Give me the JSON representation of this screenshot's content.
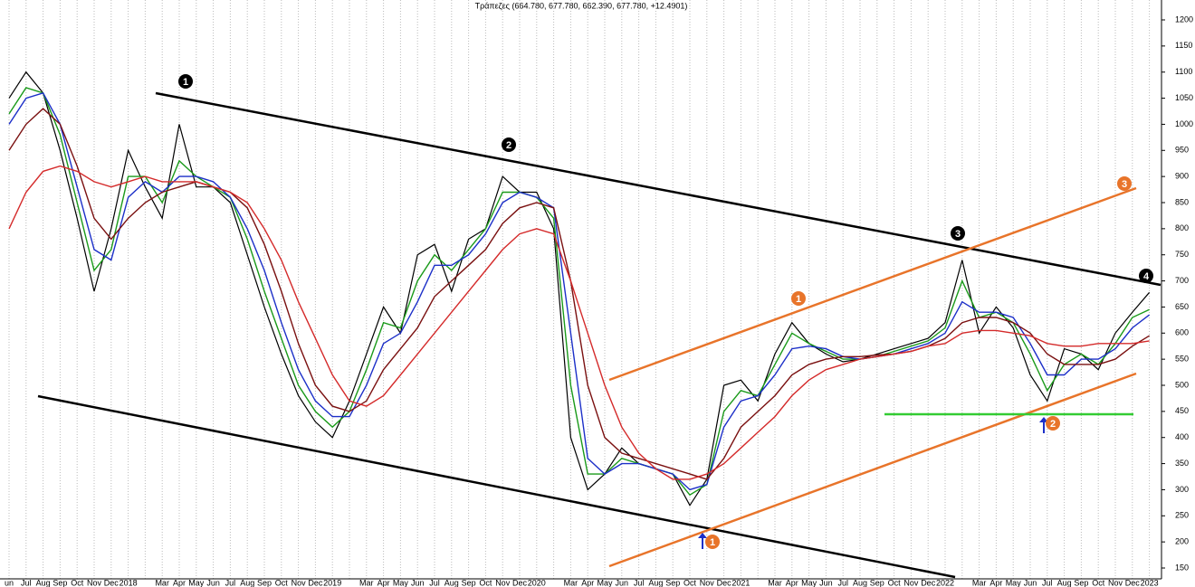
{
  "chart_data": {
    "type": "line",
    "title": "Τράπεζες (664.780, 677.780, 662.390, 677.780, +12.4901)",
    "categories": [
      "un",
      "Jul",
      "Aug",
      "Sep",
      "Oct",
      "Nov",
      "Dec",
      "2018",
      null,
      "Mar",
      "Apr",
      "May",
      "Jun",
      "Jul",
      "Aug",
      "Sep",
      "Oct",
      "Nov",
      "Dec",
      "2019",
      null,
      "Mar",
      "Apr",
      "May",
      "Jun",
      "Jul",
      "Aug",
      "Sep",
      "Oct",
      "Nov",
      "Dec",
      "2020",
      null,
      "Mar",
      "Apr",
      "May",
      "Jun",
      "Jul",
      "Aug",
      "Sep",
      "Oct",
      "Nov",
      "Dec",
      "2021",
      null,
      "Mar",
      "Apr",
      "May",
      "Jun",
      "Jul",
      "Aug",
      "Sep",
      "Oct",
      "Nov",
      "Dec",
      "2022",
      null,
      "Mar",
      "Apr",
      "May",
      "Jun",
      "Jul",
      "Aug",
      "Sep",
      "Oct",
      "Nov",
      "Dec",
      "2023"
    ],
    "series": [
      {
        "color": "#000000",
        "values": [
          1050,
          1100,
          1060,
          950,
          820,
          680,
          800,
          950,
          880,
          820,
          1000,
          880,
          880,
          850,
          750,
          650,
          560,
          480,
          430,
          400,
          470,
          560,
          650,
          600,
          750,
          770,
          680,
          780,
          800,
          900,
          870,
          870,
          800,
          400,
          300,
          330,
          380,
          350,
          340,
          330,
          270,
          320,
          500,
          510,
          470,
          560,
          620,
          580,
          560,
          545,
          550,
          560,
          570,
          580,
          590,
          620,
          740,
          600,
          650,
          610,
          520,
          470,
          570,
          560,
          530,
          600,
          640,
          678
        ]
      },
      {
        "color": "#1a9a1a",
        "values": [
          1020,
          1070,
          1060,
          980,
          850,
          720,
          760,
          900,
          900,
          850,
          930,
          900,
          880,
          860,
          780,
          680,
          590,
          500,
          450,
          420,
          450,
          530,
          620,
          610,
          700,
          750,
          720,
          760,
          800,
          870,
          870,
          860,
          820,
          500,
          330,
          330,
          360,
          350,
          340,
          330,
          290,
          310,
          450,
          490,
          480,
          540,
          600,
          580,
          565,
          550,
          550,
          555,
          565,
          575,
          585,
          610,
          700,
          630,
          640,
          620,
          560,
          490,
          540,
          560,
          540,
          580,
          630,
          645
        ]
      },
      {
        "color": "#1c2fc8",
        "values": [
          1000,
          1050,
          1060,
          1000,
          880,
          760,
          740,
          860,
          890,
          870,
          900,
          900,
          890,
          860,
          800,
          720,
          620,
          530,
          470,
          440,
          440,
          500,
          580,
          600,
          660,
          730,
          730,
          750,
          790,
          850,
          870,
          860,
          840,
          600,
          360,
          330,
          350,
          350,
          340,
          330,
          300,
          310,
          420,
          470,
          480,
          520,
          570,
          575,
          570,
          555,
          550,
          555,
          560,
          570,
          580,
          600,
          660,
          640,
          640,
          630,
          580,
          520,
          520,
          550,
          550,
          570,
          610,
          635
        ]
      },
      {
        "color": "#7a1010",
        "values": [
          950,
          1000,
          1030,
          1000,
          920,
          820,
          780,
          820,
          850,
          870,
          880,
          890,
          880,
          870,
          840,
          770,
          680,
          580,
          500,
          460,
          450,
          470,
          530,
          570,
          610,
          670,
          700,
          730,
          760,
          810,
          840,
          850,
          840,
          700,
          500,
          400,
          370,
          360,
          350,
          340,
          330,
          320,
          360,
          420,
          450,
          480,
          520,
          540,
          550,
          555,
          555,
          558,
          560,
          565,
          575,
          590,
          620,
          630,
          630,
          620,
          600,
          560,
          540,
          540,
          540,
          550,
          575,
          595
        ]
      },
      {
        "color": "#d42a2a",
        "values": [
          800,
          870,
          910,
          920,
          910,
          890,
          880,
          890,
          900,
          890,
          890,
          890,
          880,
          870,
          850,
          800,
          740,
          660,
          590,
          520,
          470,
          460,
          480,
          520,
          560,
          600,
          640,
          680,
          720,
          760,
          790,
          800,
          790,
          700,
          600,
          500,
          420,
          370,
          340,
          320,
          320,
          330,
          350,
          380,
          410,
          440,
          480,
          510,
          530,
          540,
          550,
          555,
          560,
          565,
          575,
          580,
          600,
          605,
          605,
          600,
          595,
          580,
          575,
          575,
          580,
          580,
          580,
          585
        ]
      }
    ],
    "ylim": [
      150,
      1200
    ],
    "yticks": [
      150,
      200,
      250,
      300,
      350,
      400,
      450,
      500,
      550,
      600,
      650,
      700,
      750,
      800,
      850,
      900,
      950,
      1000,
      1050,
      1100,
      1150,
      1200
    ],
    "grid": true,
    "annotations": [
      "1",
      "2",
      "3",
      "4",
      "1",
      "3",
      "1",
      "2"
    ]
  }
}
